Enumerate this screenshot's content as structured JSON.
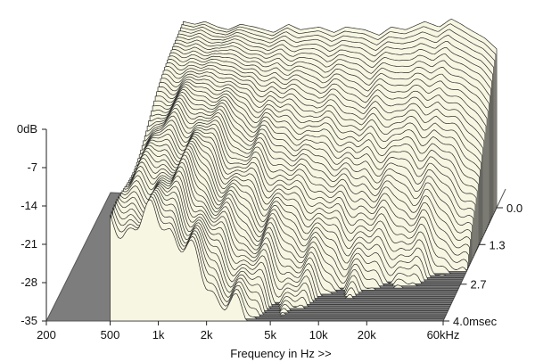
{
  "chart_data": {
    "type": "waterfall",
    "title": "",
    "xlabel": "Frequency in Hz >>",
    "ylabel": "",
    "x_scale": "log",
    "x_range": [
      200,
      60000
    ],
    "y_range": [
      -35,
      0
    ],
    "time_range": [
      0,
      4.0
    ],
    "x_ticks": [
      {
        "value": 200,
        "label": "200"
      },
      {
        "value": 500,
        "label": "500"
      },
      {
        "value": 1000,
        "label": "1k"
      },
      {
        "value": 2000,
        "label": "2k"
      },
      {
        "value": 5000,
        "label": "5k"
      },
      {
        "value": 10000,
        "label": "10k"
      },
      {
        "value": 20000,
        "label": "20k"
      },
      {
        "value": 60000,
        "label": "60kHz"
      }
    ],
    "y_ticks": [
      {
        "value": 0,
        "label": "0dB"
      },
      {
        "value": -7,
        "label": "-7"
      },
      {
        "value": -14,
        "label": "-14"
      },
      {
        "value": -21,
        "label": "-21"
      },
      {
        "value": -28,
        "label": "-28"
      },
      {
        "value": -35,
        "label": "-35"
      }
    ],
    "time_ticks": [
      {
        "value": 0.0,
        "label": "0.0"
      },
      {
        "value": 1.3,
        "label": "1.3"
      },
      {
        "value": 2.7,
        "label": "2.7"
      },
      {
        "value": 4.0,
        "label": "4.0msec"
      }
    ],
    "slice_count": 56,
    "initial_response_db": [
      [
        500,
        -1
      ],
      [
        600,
        -1.5
      ],
      [
        700,
        -1
      ],
      [
        850,
        -2
      ],
      [
        1000,
        -2.5
      ],
      [
        1200,
        -1.5
      ],
      [
        1500,
        -2
      ],
      [
        2000,
        -3
      ],
      [
        2500,
        -1.5
      ],
      [
        3000,
        -2.5
      ],
      [
        4000,
        -2
      ],
      [
        5000,
        -3
      ],
      [
        6000,
        -2
      ],
      [
        8000,
        -2.5
      ],
      [
        10000,
        -3.5
      ],
      [
        12000,
        -2
      ],
      [
        15000,
        -2.5
      ],
      [
        20000,
        -1
      ],
      [
        25000,
        -2
      ],
      [
        30000,
        -0.5
      ],
      [
        35000,
        -1.5
      ],
      [
        40000,
        -2.5
      ],
      [
        50000,
        -4
      ],
      [
        60000,
        -6
      ]
    ],
    "colors": {
      "surface": "#f7f6e2",
      "mesh": "#2a2a2a",
      "floor": "#7d7d7d",
      "floor_edge": "#555555",
      "text": "#111111"
    }
  }
}
